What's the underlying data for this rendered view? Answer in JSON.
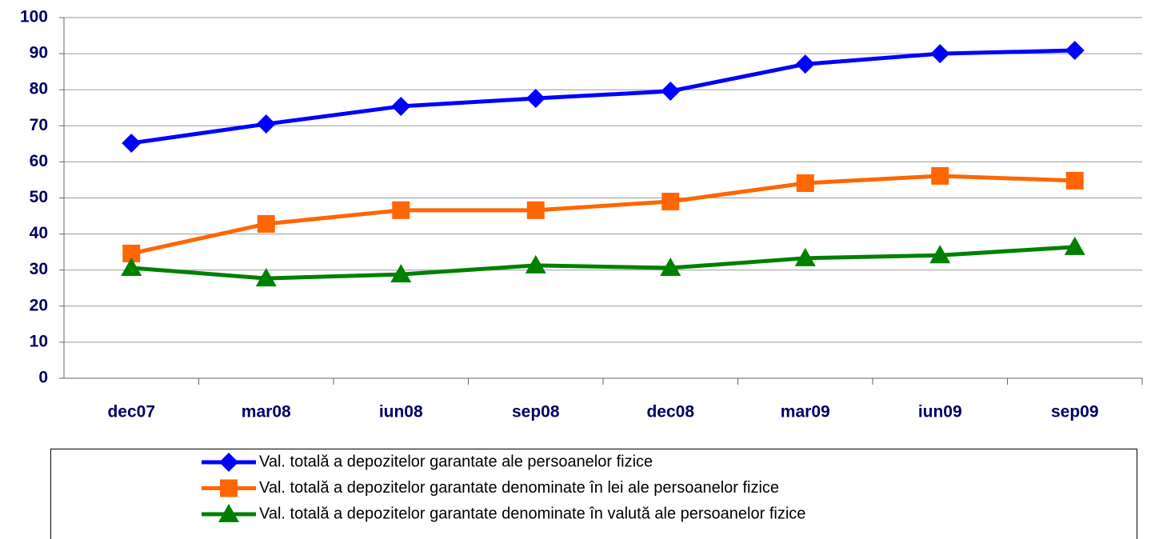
{
  "chart_data": {
    "type": "line",
    "categories": [
      "dec07",
      "mar08",
      "iun08",
      "sep08",
      "dec08",
      "mar09",
      "iun09",
      "sep09"
    ],
    "series": [
      {
        "name": "Val. totală a depozitelor garantate ale persoanelor fizice",
        "color": "#0000ff",
        "marker": "diamond",
        "values": [
          65.2,
          70.5,
          75.4,
          77.6,
          79.6,
          87.1,
          90.0,
          90.9
        ]
      },
      {
        "name": "Val. totală a depozitelor garantate denominate în lei ale persoanelor fizice",
        "color": "#ff6600",
        "marker": "square",
        "values": [
          34.6,
          42.8,
          46.6,
          46.6,
          49.0,
          54.1,
          56.1,
          54.8
        ]
      },
      {
        "name": "Val. totală a depozitelor garantate denominate în valută ale persoanelor fizice",
        "color": "#008000",
        "marker": "triangle",
        "values": [
          30.6,
          27.7,
          28.8,
          31.3,
          30.6,
          33.3,
          34.1,
          36.4
        ]
      }
    ],
    "ylim": [
      0,
      100
    ],
    "yticks": [
      0,
      10,
      20,
      30,
      40,
      50,
      60,
      70,
      80,
      90,
      100
    ],
    "grid": true,
    "legend": "bottom"
  }
}
